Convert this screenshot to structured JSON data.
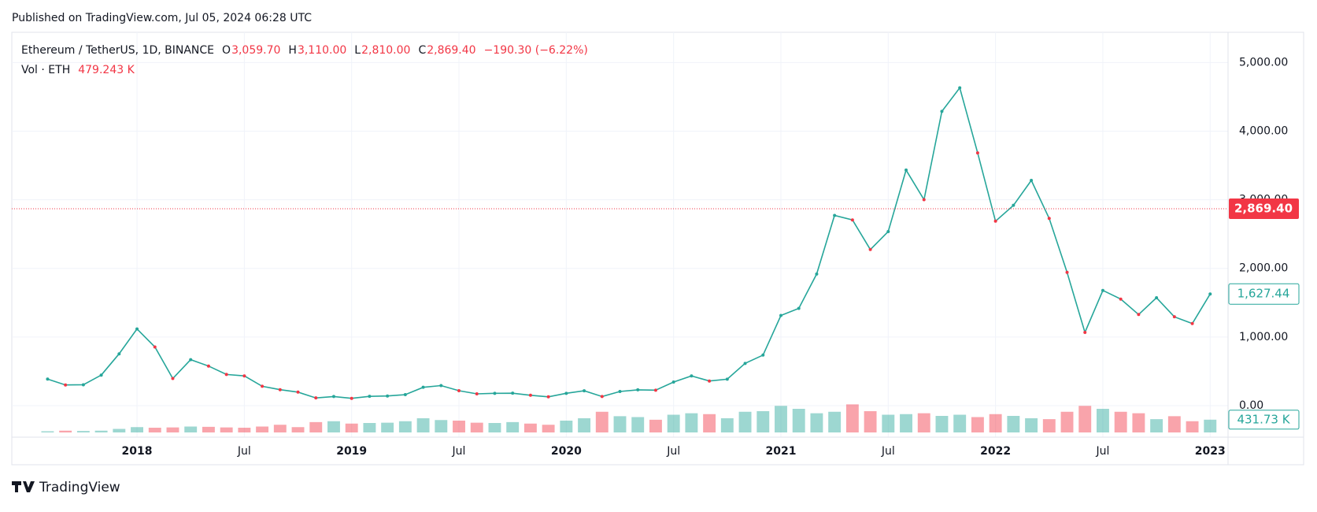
{
  "header": {
    "published": "Published on TradingView.com, Jul 05, 2024 06:28 UTC"
  },
  "footer": {
    "brand": "TradingView"
  },
  "chart_data": {
    "type": "line",
    "symbol": "Ethereum / TetherUS, 1D, BINANCE",
    "ohlc": [
      {
        "label": "O",
        "value": "3,059.70"
      },
      {
        "label": "H",
        "value": "3,110.00"
      },
      {
        "label": "L",
        "value": "2,810.00"
      },
      {
        "label": "C",
        "value": "2,869.40"
      }
    ],
    "change": "−190.30 (−6.22%)",
    "volume_title": "Vol · ETH",
    "volume_last": "479.243 K",
    "color": "#26a69a",
    "down_color": "#f23645",
    "x": [
      "2017-08",
      "2017-09",
      "2017-10",
      "2017-11",
      "2017-12",
      "2018-01",
      "2018-02",
      "2018-03",
      "2018-04",
      "2018-05",
      "2018-06",
      "2018-07",
      "2018-08",
      "2018-09",
      "2018-10",
      "2018-11",
      "2018-12",
      "2019-01",
      "2019-02",
      "2019-03",
      "2019-04",
      "2019-05",
      "2019-06",
      "2019-07",
      "2019-08",
      "2019-09",
      "2019-10",
      "2019-11",
      "2019-12",
      "2020-01",
      "2020-02",
      "2020-03",
      "2020-04",
      "2020-05",
      "2020-06",
      "2020-07",
      "2020-08",
      "2020-09",
      "2020-10",
      "2020-11",
      "2020-12",
      "2021-01",
      "2021-02",
      "2021-03",
      "2021-04",
      "2021-05",
      "2021-06",
      "2021-07",
      "2021-08",
      "2021-09",
      "2021-10",
      "2021-11",
      "2021-12",
      "2022-01",
      "2022-02",
      "2022-03",
      "2022-04",
      "2022-05",
      "2022-06",
      "2022-07",
      "2022-08",
      "2022-09",
      "2022-10",
      "2022-11",
      "2022-12",
      "2023-01"
    ],
    "values": [
      388,
      302,
      305,
      445,
      755,
      1118,
      855,
      396,
      670,
      577,
      455,
      434,
      283,
      233,
      198,
      113,
      133,
      107,
      136,
      141,
      161,
      268,
      293,
      218,
      172,
      180,
      182,
      152,
      129,
      180,
      217,
      133,
      207,
      231,
      226,
      345,
      434,
      359,
      386,
      616,
      737,
      1314,
      1418,
      1918,
      2772,
      2706,
      2275,
      2536,
      3433,
      3001,
      4288,
      4631,
      3683,
      2688,
      2919,
      3282,
      2728,
      1942,
      1067,
      1679,
      1553,
      1328,
      1572,
      1295,
      1196,
      1627.44
    ],
    "volume": [
      40,
      60,
      50,
      60,
      120,
      180,
      160,
      170,
      200,
      190,
      170,
      160,
      200,
      260,
      180,
      350,
      380,
      300,
      320,
      330,
      380,
      480,
      420,
      400,
      330,
      320,
      350,
      300,
      260,
      400,
      480,
      700,
      550,
      520,
      430,
      600,
      650,
      620,
      480,
      700,
      720,
      900,
      800,
      650,
      700,
      950,
      720,
      600,
      620,
      650,
      560,
      600,
      520,
      620,
      560,
      480,
      450,
      700,
      900,
      800,
      700,
      650,
      450,
      550,
      380,
      431.73
    ],
    "xlim": [
      "2017-06",
      "2023-02"
    ],
    "xticks": [
      {
        "value": "2018-01",
        "label": "2018"
      },
      {
        "value": "2018-07",
        "label": "Jul"
      },
      {
        "value": "2019-01",
        "label": "2019"
      },
      {
        "value": "2019-07",
        "label": "Jul"
      },
      {
        "value": "2020-01",
        "label": "2020"
      },
      {
        "value": "2020-07",
        "label": "Jul"
      },
      {
        "value": "2021-01",
        "label": "2021"
      },
      {
        "value": "2021-07",
        "label": "Jul"
      },
      {
        "value": "2022-01",
        "label": "2022"
      },
      {
        "value": "2022-07",
        "label": "Jul"
      },
      {
        "value": "2023-01",
        "label": "2023"
      }
    ],
    "ylim": [
      -390,
      5440
    ],
    "yticks": [
      {
        "value": 0,
        "label": "0.00"
      },
      {
        "value": 1000,
        "label": "1,000.00"
      },
      {
        "value": 2000,
        "label": "2,000.00"
      },
      {
        "value": 3000,
        "label": "3,000.00"
      },
      {
        "value": 4000,
        "label": "4,000.00"
      },
      {
        "value": 5000,
        "label": "5,000.00"
      }
    ],
    "volume_ylim": [
      0,
      3200
    ],
    "last_price": {
      "value": 2869.4,
      "label": "2,869.40"
    },
    "last_visible": {
      "value": 1627.44,
      "label": "1,627.44"
    },
    "last_volume": {
      "value": 431.73,
      "label": "431.73 K"
    },
    "grid": true
  }
}
